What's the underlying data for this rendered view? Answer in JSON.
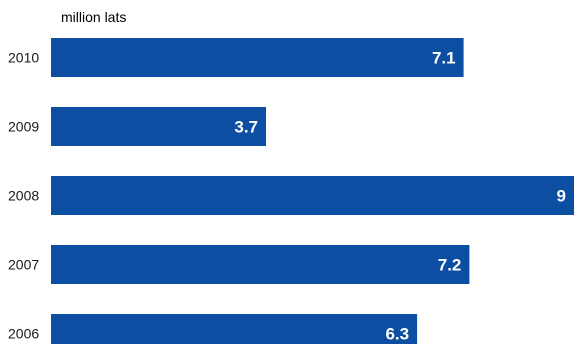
{
  "chart_data": {
    "type": "bar",
    "orientation": "horizontal",
    "unit": "million lats",
    "categories": [
      "2010",
      "2009",
      "2008",
      "2007",
      "2006"
    ],
    "values": [
      7.1,
      3.7,
      9,
      7.2,
      6.3
    ],
    "value_labels": [
      "7.1",
      "3.7",
      "9",
      "7.2",
      "6.3"
    ],
    "xlim": [
      0,
      9
    ],
    "grid": false,
    "legend": "none"
  },
  "colors": {
    "bar": "#0c4ea2",
    "bar_text": "#ffffff",
    "text": "#1a1a1a",
    "background": "#ffffff"
  }
}
